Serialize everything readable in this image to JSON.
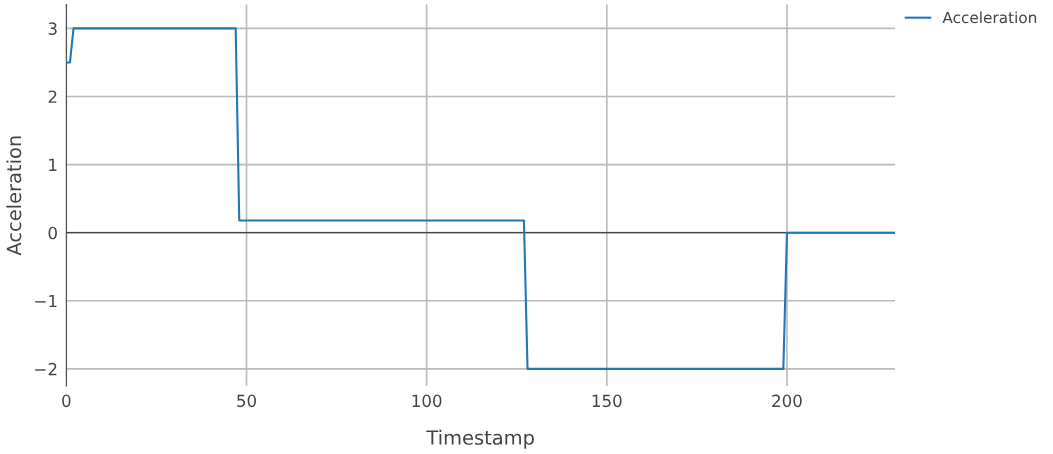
{
  "chart_data": {
    "type": "line",
    "xlabel": "Timestamp",
    "ylabel": "Acceleration",
    "x": [
      0,
      1,
      2,
      47,
      48,
      127,
      128,
      199,
      200,
      230
    ],
    "series": [
      {
        "name": "Acceleration",
        "color": "#1f77b4",
        "values": [
          2.5,
          2.5,
          3,
          3,
          0.18,
          0.18,
          -2,
          -2,
          0,
          0
        ]
      }
    ],
    "xlim": [
      0,
      230
    ],
    "ylim": [
      -2.25,
      3.35
    ],
    "xticks": [
      0,
      50,
      100,
      150,
      200
    ],
    "yticks": [
      {
        "value": -2,
        "label": "−2"
      },
      {
        "value": -1,
        "label": "−1"
      },
      0,
      1,
      2,
      3
    ],
    "ref_lines": [
      {
        "axis": "y",
        "value": 0,
        "color": "#444444"
      }
    ],
    "grid": true,
    "legend": "top right",
    "marker": "none",
    "line_style": "solid"
  }
}
